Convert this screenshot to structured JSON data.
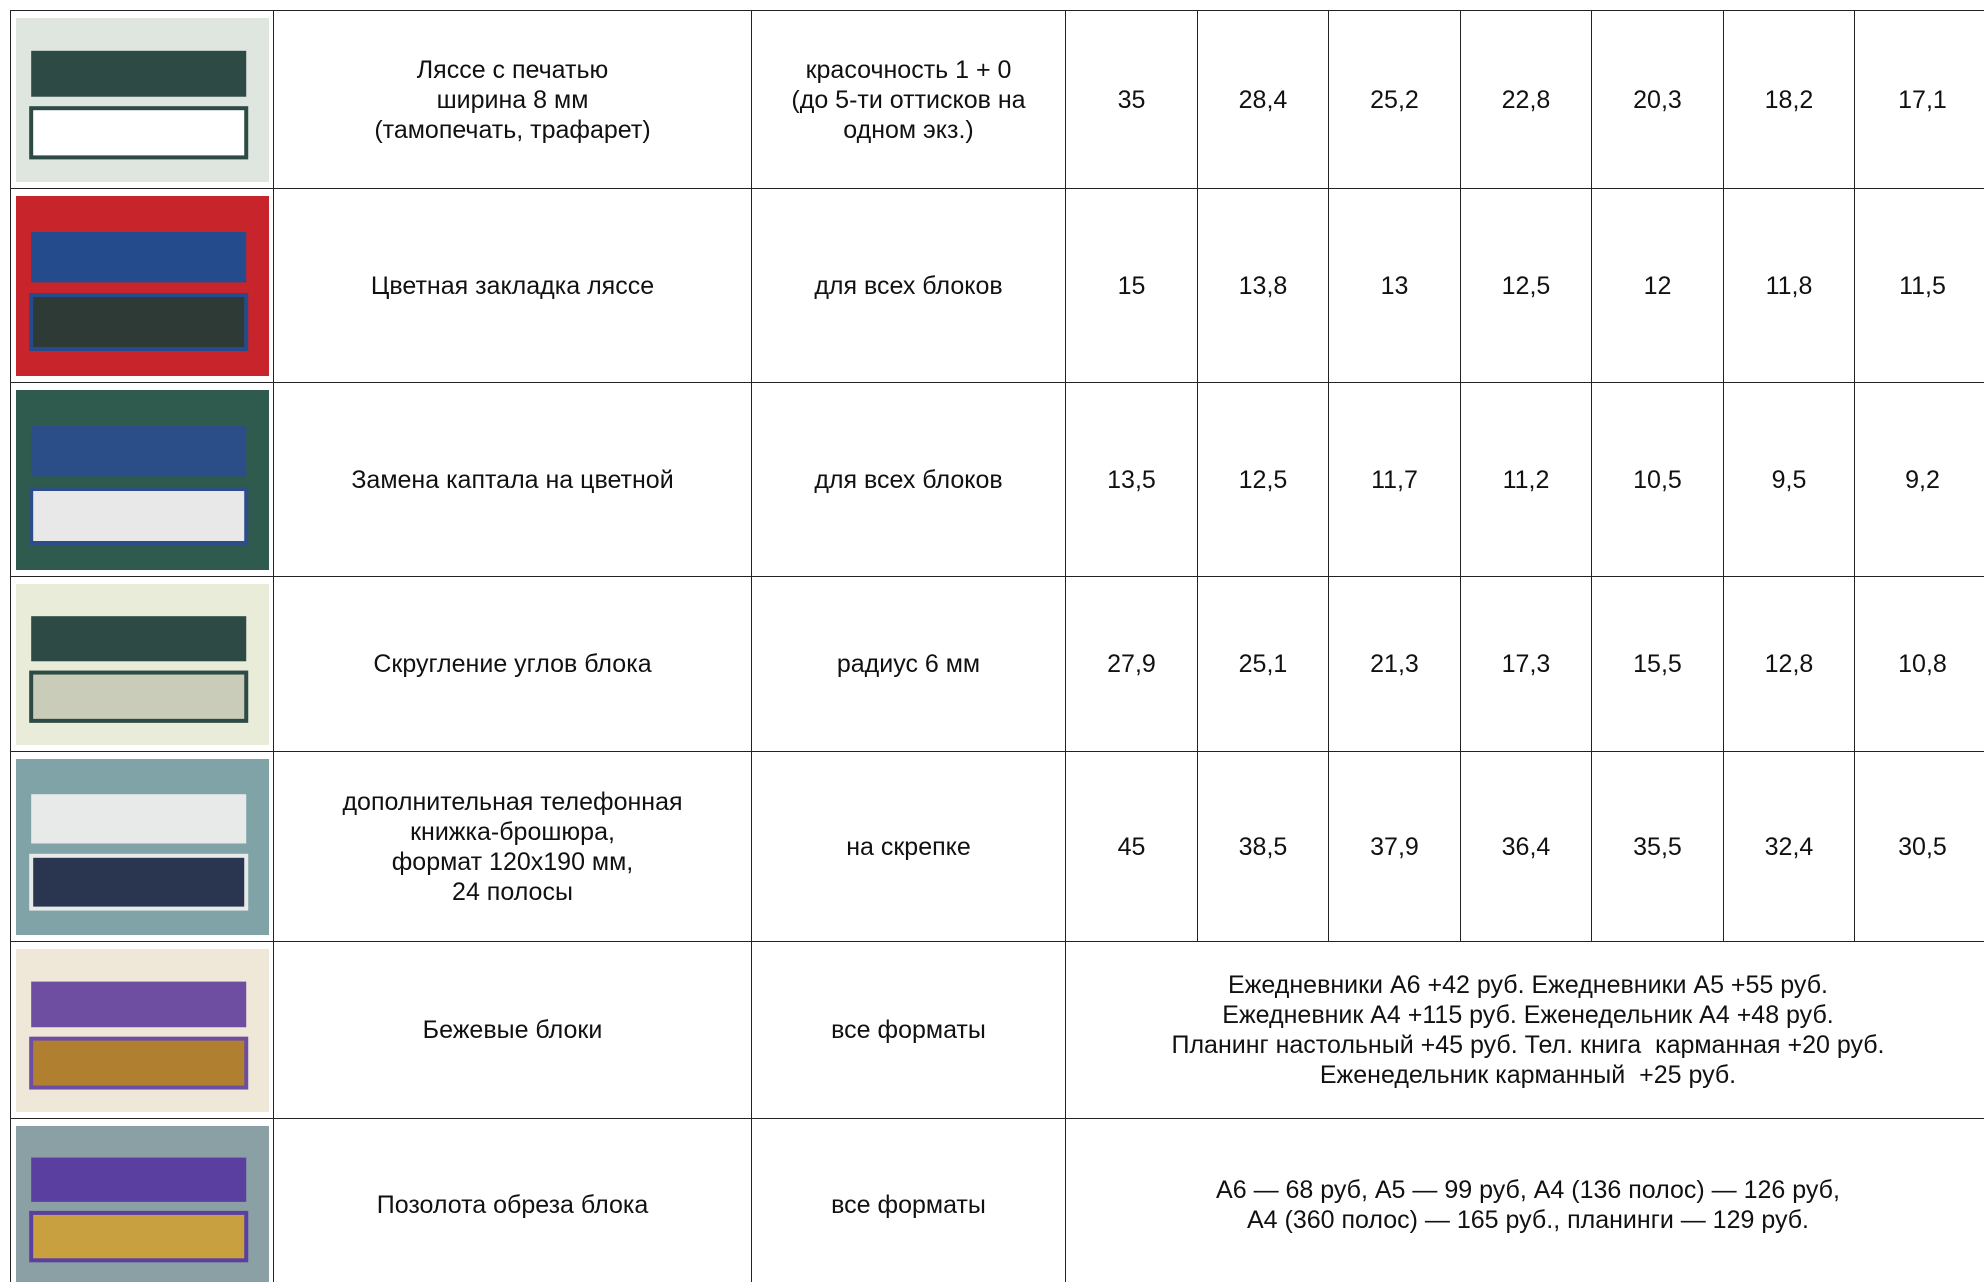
{
  "table": {
    "rows": [
      {
        "name": [
          "Ляссе с печатью",
          "ширина 8 мм",
          "(тамопечать, трафарет)"
        ],
        "note": [
          "красочность 1 + 0",
          "(до 5-ти оттисков на",
          "одном экз.)"
        ],
        "prices": [
          "35",
          "28,4",
          "25,2",
          "22,8",
          "20,3",
          "18,2",
          "17,1"
        ]
      },
      {
        "name": [
          "Цветная закладка ляссе"
        ],
        "note": [
          "для всех блоков"
        ],
        "prices": [
          "15",
          "13,8",
          "13",
          "12,5",
          "12",
          "11,8",
          "11,5"
        ]
      },
      {
        "name": [
          "Замена каптала на цветной"
        ],
        "note": [
          "для всех блоков"
        ],
        "prices": [
          "13,5",
          "12,5",
          "11,7",
          "11,2",
          "10,5",
          "9,5",
          "9,2"
        ]
      },
      {
        "name": [
          "Скругление углов блока"
        ],
        "note": [
          "радиус 6 мм"
        ],
        "prices": [
          "27,9",
          "25,1",
          "21,3",
          "17,3",
          "15,5",
          "12,8",
          "10,8"
        ]
      },
      {
        "name": [
          "дополнительная телефонная",
          "книжка-брошюра,",
          "формат 120х190 мм,",
          "24 полосы"
        ],
        "note": [
          "на скрепке"
        ],
        "prices": [
          "45",
          "38,5",
          "37,9",
          "36,4",
          "35,5",
          "32,4",
          "30,5"
        ]
      },
      {
        "name": [
          "Бежевые блоки"
        ],
        "note": [
          "все форматы"
        ],
        "text": [
          "Ежедневники А6 +42 руб. Ежедневники А5 +55 руб.",
          "Ежедневник А4 +115 руб. Еженедельник А4 +48 руб.",
          "Планинг настольный +45 руб. Тел. книга  карманная +20 руб.",
          "Еженедельник карманный  +25 руб."
        ]
      },
      {
        "name": [
          "Позолота обреза блока"
        ],
        "note": [
          "все форматы"
        ],
        "text": [
          "А6 — 68 руб, А5 — 99 руб, А4 (136 полос) — 126 руб,",
          "А4 (360 полос) — 165 руб., планинги — 129 руб."
        ]
      }
    ]
  }
}
